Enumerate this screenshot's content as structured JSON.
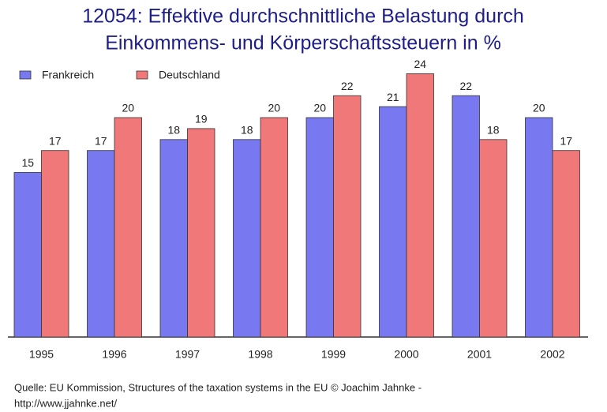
{
  "chart_data": {
    "type": "bar",
    "title": [
      "12054: Effektive durchschnittliche Belastung durch",
      "Einkommens- und Körperschaftssteuern in %"
    ],
    "categories": [
      "1995",
      "1996",
      "1997",
      "1998",
      "1999",
      "2000",
      "2001",
      "2002"
    ],
    "series": [
      {
        "name": "Frankreich",
        "color": "#7878f0",
        "values": [
          15,
          17,
          18,
          18,
          20,
          21,
          22,
          20
        ]
      },
      {
        "name": "Deutschland",
        "color": "#f07878",
        "values": [
          17,
          20,
          19,
          20,
          22,
          24,
          18,
          17
        ]
      }
    ],
    "source": [
      "Quelle: EU Kommission, Structures of the taxation systems in the EU © Joachim Jahnke -",
      "http://www.jjahnke.net/"
    ]
  }
}
